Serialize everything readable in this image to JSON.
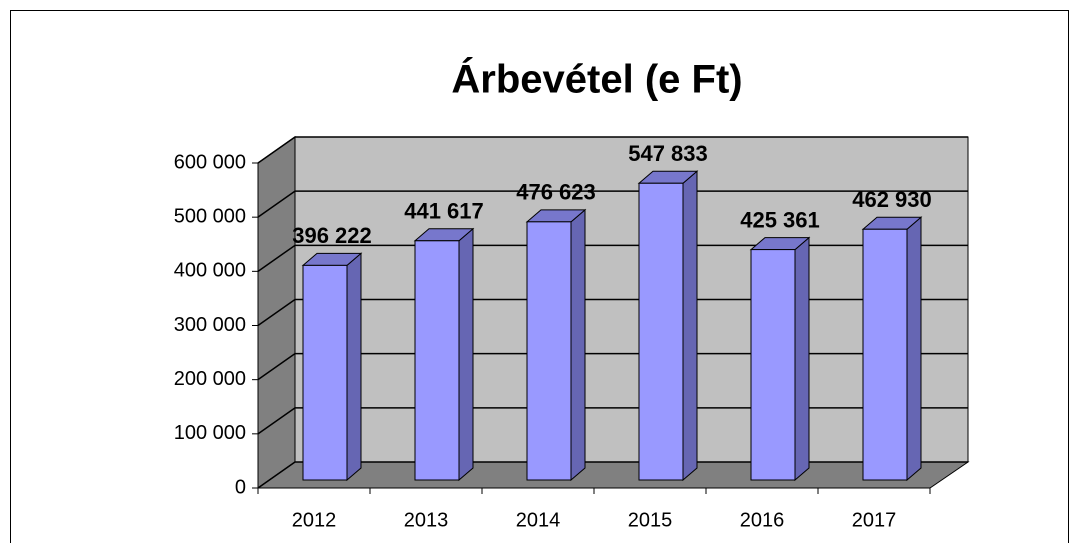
{
  "chart_data": {
    "type": "bar3d",
    "title": "Árbevétel (e Ft)",
    "categories": [
      "2012",
      "2013",
      "2014",
      "2015",
      "2016",
      "2017"
    ],
    "values": [
      396222,
      441617,
      476623,
      547833,
      425361,
      462930
    ],
    "value_labels": [
      "396 222",
      "441 617",
      "476 623",
      "547 833",
      "425 361",
      "462 930"
    ],
    "color": "#9999ff",
    "ylim": [
      0,
      600000
    ],
    "yticks": [
      0,
      {
        "value": 100000,
        "label": "100 000"
      },
      {
        "value": 200000,
        "label": "200 000"
      },
      {
        "value": 300000,
        "label": "300 000"
      },
      {
        "value": 400000,
        "label": "400 000"
      },
      {
        "value": 500000,
        "label": "500 000"
      },
      {
        "value": 600000,
        "label": "600 000"
      }
    ],
    "grid": true
  }
}
